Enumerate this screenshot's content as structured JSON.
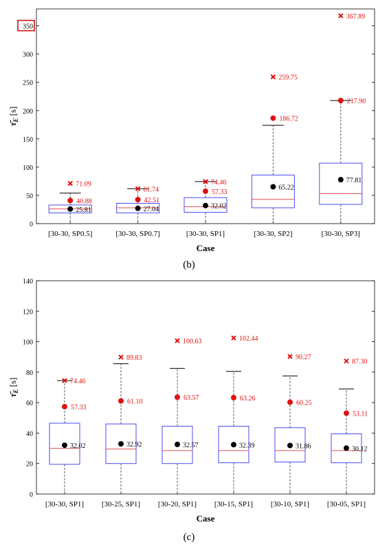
{
  "figure": {
    "caption_b": "(b)",
    "caption_c": "(c)"
  },
  "colors": {
    "box": "#4a4af0",
    "median": "#e05050",
    "whisker": "#555555",
    "mean": "#000000",
    "red": "#e01010",
    "highlight": "#cc1111"
  },
  "chart_data": [
    {
      "type": "box",
      "panel": "b",
      "xlabel": "Case",
      "ylabel": "τ̄E [s]",
      "ylim": [
        0,
        380
      ],
      "yticks": [
        0,
        50,
        100,
        150,
        200,
        250,
        300,
        350
      ],
      "highlighted_tick": 350,
      "categories": [
        "[30-30, SP0.5]",
        "[30-30, SP0.7]",
        "[30-30, SP1]",
        "[30-30, SP2]",
        "[30-30, SP3]"
      ],
      "boxes": [
        {
          "q1": 19,
          "median": 26,
          "q3": 33,
          "whisker_low": 0,
          "whisker_high": 54,
          "mean": 25.81,
          "mean_label": "25.81",
          "red_dot": 40.88,
          "red_dot_label": "40.88",
          "max": 71.09,
          "max_label": "71.09"
        },
        {
          "q1": 19,
          "median": 28,
          "q3": 36,
          "whisker_low": 0,
          "whisker_high": 61.74,
          "mean": 27.04,
          "mean_label": "27.04",
          "red_dot": 42.51,
          "red_dot_label": "42.51",
          "max": 61.74,
          "max_label": "61.74"
        },
        {
          "q1": 20,
          "median": 30,
          "q3": 46,
          "whisker_low": 0,
          "whisker_high": 74.46,
          "mean": 32.02,
          "mean_label": "32.02",
          "red_dot": 57.33,
          "red_dot_label": "57.33",
          "max": 74.46,
          "max_label": "74.46"
        },
        {
          "q1": 28,
          "median": 43,
          "q3": 86,
          "whisker_low": 0,
          "whisker_high": 174,
          "mean": 65.22,
          "mean_label": "65.22",
          "red_dot": 186.72,
          "red_dot_label": "186.72",
          "max": 259.75,
          "max_label": "259.75"
        },
        {
          "q1": 34,
          "median": 53,
          "q3": 107,
          "whisker_low": 0,
          "whisker_high": 217.9,
          "mean": 77.81,
          "mean_label": "77.81",
          "red_dot": 217.9,
          "red_dot_label": "217.90",
          "max": 367.89,
          "max_label": "367.89"
        }
      ]
    },
    {
      "type": "box",
      "panel": "c",
      "xlabel": "Case",
      "ylabel": "τ̄E [s]",
      "ylim": [
        0,
        140
      ],
      "yticks": [
        0,
        20,
        40,
        60,
        80,
        100,
        120,
        140
      ],
      "categories": [
        "[30-30, SP1]",
        "[30-25, SP1]",
        "[30-20, SP1]",
        "[30-15, SP1]",
        "[30-10, SP1]",
        "[30-05, SP1]"
      ],
      "boxes": [
        {
          "q1": 19.5,
          "median": 30,
          "q3": 46.5,
          "whisker_low": 0,
          "whisker_high": 74.46,
          "mean": 32.02,
          "mean_label": "32.02",
          "red_dot": 57.33,
          "red_dot_label": "57.33",
          "max": 74.46,
          "max_label": "74.46"
        },
        {
          "q1": 20,
          "median": 29.5,
          "q3": 46,
          "whisker_low": 0,
          "whisker_high": 85.5,
          "mean": 32.92,
          "mean_label": "32.92",
          "red_dot": 61.1,
          "red_dot_label": "61.10",
          "max": 89.83,
          "max_label": "89.83"
        },
        {
          "q1": 20,
          "median": 28.5,
          "q3": 44.5,
          "whisker_low": 0,
          "whisker_high": 82.5,
          "mean": 32.57,
          "mean_label": "32.57",
          "red_dot": 63.57,
          "red_dot_label": "63.57",
          "max": 100.63,
          "max_label": "100.63"
        },
        {
          "q1": 20.5,
          "median": 28.5,
          "q3": 44.5,
          "whisker_low": 0,
          "whisker_high": 80.5,
          "mean": 32.39,
          "mean_label": "32.39",
          "red_dot": 63.26,
          "red_dot_label": "63.26",
          "max": 102.44,
          "max_label": "102.44"
        },
        {
          "q1": 21,
          "median": 28.5,
          "q3": 43.5,
          "whisker_low": 0,
          "whisker_high": 77.5,
          "mean": 31.86,
          "mean_label": "31.86",
          "red_dot": 60.25,
          "red_dot_label": "60.25",
          "max": 90.27,
          "max_label": "90.27"
        },
        {
          "q1": 20.5,
          "median": 28.5,
          "q3": 39.5,
          "whisker_low": 0,
          "whisker_high": 69,
          "mean": 30.12,
          "mean_label": "30.12",
          "red_dot": 53.11,
          "red_dot_label": "53.11",
          "max": 87.3,
          "max_label": "87.30"
        }
      ]
    }
  ]
}
